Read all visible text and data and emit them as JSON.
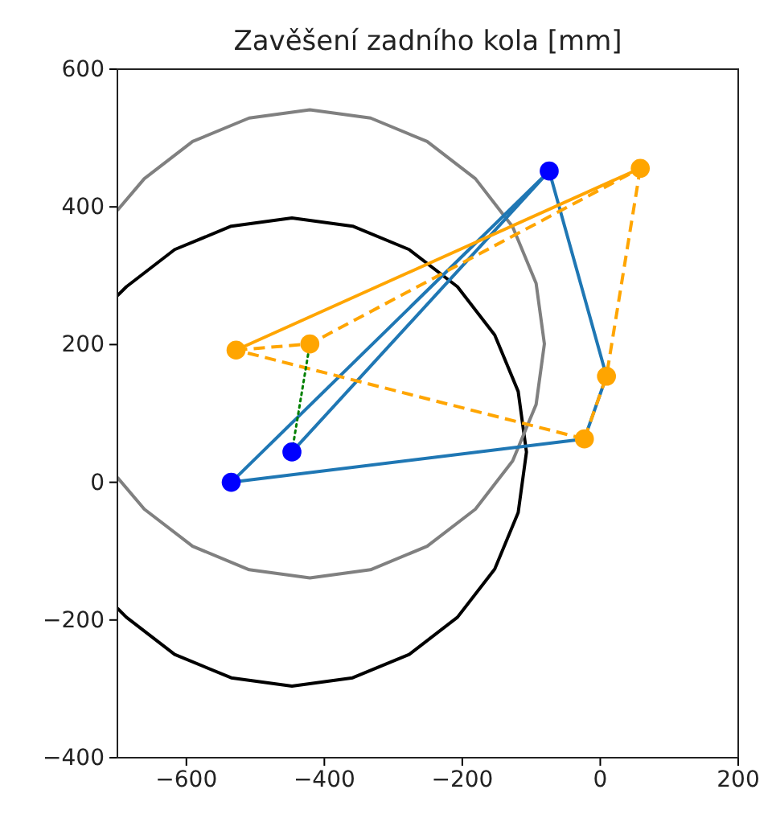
{
  "chart_data": {
    "type": "line",
    "title": "Zavěšení zadního kola [mm]",
    "xlim": [
      -700,
      200
    ],
    "xticks": [
      -600,
      -400,
      -200,
      0,
      200
    ],
    "ylim": [
      -400,
      600
    ],
    "yticks": [
      -400,
      -200,
      0,
      200,
      400,
      600
    ],
    "grid": false,
    "series": [
      {
        "color": "#000000",
        "marker": "none",
        "line_style": "solid",
        "x": [
          -700,
          -687,
          -617,
          -535,
          -447,
          -359,
          -277,
          -207,
          -153,
          -119,
          -107,
          -119,
          -153,
          -207,
          -277,
          -359,
          -447,
          -535,
          -617,
          -687,
          -700
        ],
        "values": [
          271,
          284,
          338,
          372,
          384,
          372,
          338,
          284,
          214,
          132,
          44,
          -44,
          -126,
          -196,
          -250,
          -284,
          -296,
          -284,
          -250,
          -196,
          -183
        ]
      },
      {
        "color": "#808080",
        "marker": "none",
        "line_style": "solid",
        "x": [
          -700,
          -661,
          -591,
          -509,
          -421,
          -333,
          -251,
          -181,
          -127,
          -93,
          -81,
          -93,
          -127,
          -181,
          -251,
          -333,
          -421,
          -509,
          -591,
          -661,
          -700
        ],
        "values": [
          395,
          441,
          495,
          529,
          541,
          529,
          495,
          441,
          371,
          289,
          201,
          113,
          31,
          -39,
          -93,
          -127,
          -139,
          -127,
          -93,
          -39,
          7
        ]
      },
      {
        "color": "#1f77b4",
        "marker": "none",
        "line_style": "solid",
        "x": [
          -447,
          -74,
          9,
          -23,
          -535,
          -74
        ],
        "values": [
          44,
          452,
          154,
          63,
          0,
          452
        ]
      },
      {
        "color": "#ffa500",
        "marker": "none",
        "line_style": "solid",
        "x": [
          -528,
          58
        ],
        "values": [
          192,
          456
        ]
      },
      {
        "color": "#ffa500",
        "marker": "none",
        "line_style": "dashed",
        "x": [
          -528,
          -421,
          58
        ],
        "values": [
          192,
          201,
          456
        ]
      },
      {
        "color": "#ffa500",
        "marker": "none",
        "line_style": "dashed",
        "x": [
          58,
          9,
          -23
        ],
        "values": [
          456,
          154,
          63
        ]
      },
      {
        "color": "#ffa500",
        "marker": "none",
        "line_style": "dashed",
        "x": [
          -23,
          -528
        ],
        "values": [
          63,
          192
        ]
      },
      {
        "color": "#008000",
        "marker": "none",
        "line_style": "dotted",
        "x": [
          -447,
          -421
        ],
        "values": [
          44,
          201
        ]
      },
      {
        "type": "scatter",
        "color": "#0000ff",
        "marker": "circle",
        "x": [
          -535,
          -447,
          -74
        ],
        "values": [
          0,
          44,
          452
        ]
      },
      {
        "type": "scatter",
        "color": "#ffa500",
        "marker": "circle",
        "x": [
          -528,
          -421,
          58,
          9,
          -23
        ],
        "values": [
          192,
          201,
          456,
          154,
          63
        ]
      }
    ]
  }
}
